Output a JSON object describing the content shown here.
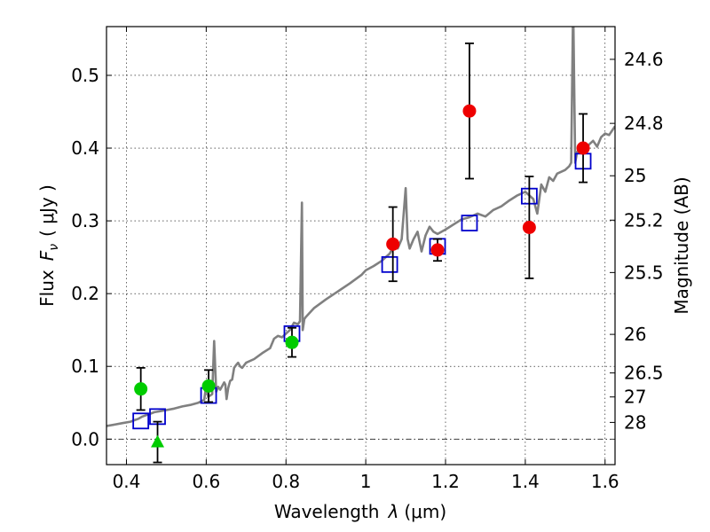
{
  "chart_data": {
    "type": "scatter",
    "xlabel": {
      "prefix": "Wavelength",
      "symbol": "λ",
      "unit": "(μm)"
    },
    "ylabel": {
      "prefix": "Flux",
      "symbol": "F",
      "subscript": "ν",
      "unit": "( μJy )"
    },
    "y2label": "Magnitude (AB)",
    "xlim": [
      0.35,
      1.625
    ],
    "ylim": [
      -0.035,
      0.567
    ],
    "x_ticks": [
      0.4,
      0.6,
      0.8,
      1.0,
      1.2,
      1.4,
      1.6
    ],
    "x_tick_labels": [
      "0.4",
      "0.6",
      "0.8",
      "1",
      "1.2",
      "1.4",
      "1.6"
    ],
    "y_ticks": [
      0.0,
      0.1,
      0.2,
      0.3,
      0.4,
      0.5
    ],
    "y_tick_labels": [
      "0.0",
      "0.1",
      "0.2",
      "0.3",
      "0.4",
      "0.5"
    ],
    "y2_ticks": [
      {
        "label": "24.6",
        "flux": 0.522
      },
      {
        "label": "24.8",
        "flux": 0.434
      },
      {
        "label": "25",
        "flux": 0.362
      },
      {
        "label": "25.2",
        "flux": 0.301
      },
      {
        "label": "25.5",
        "flux": 0.229
      },
      {
        "label": "26",
        "flux": 0.144
      },
      {
        "label": "26.5",
        "flux": 0.091
      },
      {
        "label": "27",
        "flux": 0.058
      },
      {
        "label": "28",
        "flux": 0.023
      }
    ],
    "grid": true,
    "zero_line": true,
    "colors": {
      "template": "#808080",
      "model": "#0000cc",
      "green": "#00cc00",
      "red": "#ee0000",
      "errorbar": "#000000"
    },
    "series": [
      {
        "name": "template spectrum",
        "kind": "line",
        "x": [
          0.35,
          0.37,
          0.39,
          0.41,
          0.42,
          0.43,
          0.44,
          0.45,
          0.46,
          0.47,
          0.48,
          0.5,
          0.52,
          0.54,
          0.56,
          0.58,
          0.595,
          0.6,
          0.605,
          0.615,
          0.62,
          0.625,
          0.63,
          0.635,
          0.645,
          0.648,
          0.651,
          0.655,
          0.66,
          0.665,
          0.67,
          0.675,
          0.68,
          0.685,
          0.69,
          0.7,
          0.72,
          0.74,
          0.76,
          0.77,
          0.78,
          0.79,
          0.8,
          0.81,
          0.82,
          0.83,
          0.835,
          0.84,
          0.842,
          0.846,
          0.85,
          0.87,
          0.9,
          0.93,
          0.96,
          0.99,
          1.0,
          1.02,
          1.04,
          1.06,
          1.07,
          1.08,
          1.09,
          1.1,
          1.105,
          1.11,
          1.12,
          1.13,
          1.14,
          1.15,
          1.16,
          1.17,
          1.18,
          1.2,
          1.22,
          1.24,
          1.26,
          1.28,
          1.3,
          1.32,
          1.34,
          1.36,
          1.38,
          1.4,
          1.42,
          1.43,
          1.44,
          1.45,
          1.46,
          1.47,
          1.48,
          1.5,
          1.51,
          1.515,
          1.52,
          1.525,
          1.53,
          1.54,
          1.55,
          1.56,
          1.57,
          1.58,
          1.59,
          1.6,
          1.61,
          1.625
        ],
        "y": [
          0.018,
          0.02,
          0.022,
          0.024,
          0.026,
          0.028,
          0.031,
          0.033,
          0.035,
          0.037,
          0.038,
          0.04,
          0.042,
          0.045,
          0.047,
          0.05,
          0.054,
          0.075,
          0.058,
          0.062,
          0.135,
          0.065,
          0.072,
          0.068,
          0.078,
          0.075,
          0.055,
          0.07,
          0.08,
          0.082,
          0.098,
          0.102,
          0.105,
          0.1,
          0.098,
          0.105,
          0.11,
          0.118,
          0.125,
          0.138,
          0.142,
          0.14,
          0.145,
          0.15,
          0.16,
          0.158,
          0.162,
          0.325,
          0.15,
          0.165,
          0.168,
          0.18,
          0.192,
          0.203,
          0.214,
          0.226,
          0.232,
          0.238,
          0.245,
          0.255,
          0.265,
          0.262,
          0.275,
          0.345,
          0.275,
          0.262,
          0.275,
          0.285,
          0.258,
          0.28,
          0.292,
          0.285,
          0.282,
          0.288,
          0.295,
          0.302,
          0.305,
          0.31,
          0.306,
          0.315,
          0.32,
          0.328,
          0.335,
          0.34,
          0.33,
          0.31,
          0.35,
          0.34,
          0.36,
          0.355,
          0.365,
          0.37,
          0.375,
          0.38,
          0.6,
          0.38,
          0.395,
          0.398,
          0.395,
          0.405,
          0.41,
          0.402,
          0.415,
          0.42,
          0.418,
          0.43
        ]
      },
      {
        "name": "model photometry",
        "kind": "square",
        "x": [
          0.436,
          0.478,
          0.606,
          0.815,
          1.06,
          1.18,
          1.26,
          1.41,
          1.545
        ],
        "y": [
          0.025,
          0.031,
          0.06,
          0.145,
          0.24,
          0.265,
          0.297,
          0.334,
          0.382
        ]
      },
      {
        "name": "observed (green)",
        "kind": "circle",
        "x": [
          0.436,
          0.606,
          0.815
        ],
        "y": [
          0.069,
          0.073,
          0.133
        ],
        "yerr": [
          0.029,
          0.022,
          0.02
        ]
      },
      {
        "name": "upper limit (green)",
        "kind": "triangle",
        "x": [
          0.478
        ],
        "y": [
          -0.004
        ],
        "yerr": [
          0.028
        ]
      },
      {
        "name": "observed (red)",
        "kind": "circle",
        "x": [
          1.068,
          1.18,
          1.26,
          1.41,
          1.545
        ],
        "y": [
          0.268,
          0.26,
          0.451,
          0.291,
          0.4
        ],
        "yerr": [
          0.051,
          0.015,
          0.093,
          0.07,
          0.047
        ]
      }
    ]
  }
}
